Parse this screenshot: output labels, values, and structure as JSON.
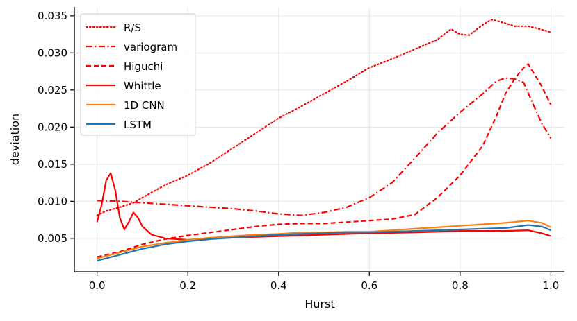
{
  "chart_data": {
    "type": "line",
    "title": "",
    "xlabel": "Hurst",
    "ylabel": "deviation",
    "xlim": [
      -0.05,
      1.03
    ],
    "ylim": [
      0.0005,
      0.0362
    ],
    "xticks": [
      0.0,
      0.2,
      0.4,
      0.6,
      0.8,
      1.0
    ],
    "xtick_labels": [
      "0.0",
      "0.2",
      "0.4",
      "0.6",
      "0.8",
      "1.0"
    ],
    "yticks": [
      0.005,
      0.01,
      0.015,
      0.02,
      0.025,
      0.03,
      0.035
    ],
    "ytick_labels": [
      "0.005",
      "0.010",
      "0.015",
      "0.020",
      "0.025",
      "0.030",
      "0.035"
    ],
    "grid": true,
    "legend_position": "top-left",
    "series": [
      {
        "name": "R/S",
        "color": "#ff0000",
        "style": "dotted",
        "x": [
          0.0,
          0.02,
          0.05,
          0.08,
          0.1,
          0.15,
          0.2,
          0.25,
          0.3,
          0.35,
          0.4,
          0.45,
          0.5,
          0.55,
          0.6,
          0.65,
          0.7,
          0.75,
          0.78,
          0.8,
          0.82,
          0.85,
          0.87,
          0.9,
          0.92,
          0.95,
          0.97,
          1.0
        ],
        "y": [
          0.0081,
          0.0087,
          0.0092,
          0.0098,
          0.0105,
          0.0122,
          0.0135,
          0.0152,
          0.0172,
          0.0192,
          0.0212,
          0.0228,
          0.0245,
          0.0262,
          0.028,
          0.0292,
          0.0305,
          0.0318,
          0.0332,
          0.0325,
          0.0324,
          0.0338,
          0.0345,
          0.034,
          0.0336,
          0.0336,
          0.0333,
          0.0328
        ]
      },
      {
        "name": "variogram",
        "color": "#ff0000",
        "style": "dashdot",
        "x": [
          0.0,
          0.05,
          0.1,
          0.15,
          0.2,
          0.25,
          0.3,
          0.35,
          0.4,
          0.45,
          0.5,
          0.55,
          0.6,
          0.65,
          0.7,
          0.75,
          0.8,
          0.85,
          0.88,
          0.9,
          0.92,
          0.94,
          0.96,
          0.98,
          1.0
        ],
        "y": [
          0.0101,
          0.01,
          0.0098,
          0.0096,
          0.0094,
          0.0092,
          0.009,
          0.0087,
          0.0083,
          0.0081,
          0.0085,
          0.0092,
          0.0105,
          0.0125,
          0.0158,
          0.0192,
          0.022,
          0.0245,
          0.0262,
          0.0266,
          0.0265,
          0.026,
          0.0232,
          0.0205,
          0.0185
        ]
      },
      {
        "name": "Higuchi",
        "color": "#ff0000",
        "style": "dashed",
        "x": [
          0.0,
          0.05,
          0.1,
          0.15,
          0.2,
          0.25,
          0.3,
          0.35,
          0.4,
          0.45,
          0.5,
          0.55,
          0.6,
          0.65,
          0.7,
          0.75,
          0.8,
          0.85,
          0.88,
          0.9,
          0.92,
          0.94,
          0.95,
          0.96,
          0.98,
          1.0
        ],
        "y": [
          0.0025,
          0.0032,
          0.0042,
          0.0049,
          0.0054,
          0.0058,
          0.0062,
          0.0066,
          0.0069,
          0.007,
          0.007,
          0.0072,
          0.0074,
          0.0076,
          0.0082,
          0.0105,
          0.0135,
          0.0175,
          0.0215,
          0.0245,
          0.0265,
          0.028,
          0.0285,
          0.0275,
          0.0255,
          0.023
        ]
      },
      {
        "name": "Whittle",
        "color": "#ff0000",
        "style": "solid",
        "x": [
          0.0,
          0.01,
          0.02,
          0.03,
          0.04,
          0.05,
          0.06,
          0.07,
          0.08,
          0.09,
          0.1,
          0.12,
          0.15,
          0.2,
          0.3,
          0.4,
          0.5,
          0.6,
          0.7,
          0.8,
          0.9,
          0.95,
          0.98,
          1.0
        ],
        "y": [
          0.0072,
          0.0095,
          0.0128,
          0.0138,
          0.0115,
          0.0078,
          0.0062,
          0.0072,
          0.0085,
          0.0078,
          0.0066,
          0.0055,
          0.005,
          0.0048,
          0.0051,
          0.0053,
          0.0055,
          0.0057,
          0.0058,
          0.006,
          0.006,
          0.0061,
          0.0057,
          0.0053
        ]
      },
      {
        "name": "1D CNN",
        "color": "#ff7f0e",
        "style": "solid",
        "x": [
          0.0,
          0.05,
          0.1,
          0.15,
          0.2,
          0.25,
          0.3,
          0.35,
          0.4,
          0.45,
          0.5,
          0.55,
          0.6,
          0.65,
          0.7,
          0.75,
          0.8,
          0.85,
          0.9,
          0.95,
          0.98,
          1.0
        ],
        "y": [
          0.0023,
          0.0031,
          0.0039,
          0.0044,
          0.0048,
          0.0051,
          0.0053,
          0.0055,
          0.0056,
          0.0058,
          0.0058,
          0.0059,
          0.0059,
          0.0061,
          0.0063,
          0.0065,
          0.0067,
          0.0069,
          0.0071,
          0.0074,
          0.0071,
          0.0065
        ]
      },
      {
        "name": "LSTM",
        "color": "#1f77b4",
        "style": "solid",
        "x": [
          0.0,
          0.05,
          0.1,
          0.15,
          0.2,
          0.25,
          0.3,
          0.35,
          0.4,
          0.45,
          0.5,
          0.55,
          0.6,
          0.65,
          0.7,
          0.75,
          0.8,
          0.85,
          0.9,
          0.95,
          0.98,
          1.0
        ],
        "y": [
          0.002,
          0.0028,
          0.0036,
          0.0042,
          0.0046,
          0.0049,
          0.0051,
          0.0053,
          0.0055,
          0.0056,
          0.0057,
          0.0058,
          0.0058,
          0.0059,
          0.006,
          0.0061,
          0.0062,
          0.0063,
          0.0064,
          0.0068,
          0.0066,
          0.0061
        ]
      }
    ]
  }
}
